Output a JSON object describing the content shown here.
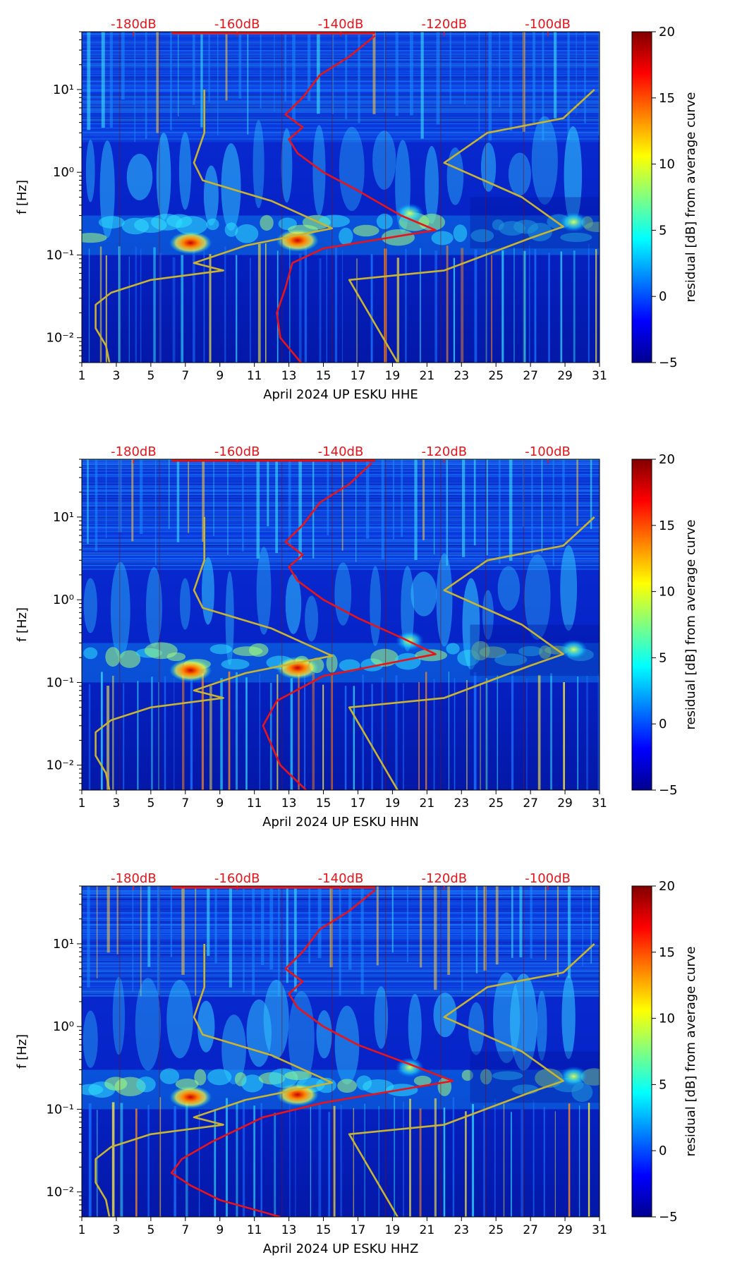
{
  "figure": {
    "colorbar_ticks": [
      "20",
      "15",
      "10",
      "5",
      "0",
      "−5"
    ],
    "colorbar_label": "residual [dB] from average curve",
    "colormap": [
      "#00008f",
      "#0000ff",
      "#0080ff",
      "#00ffff",
      "#80ff80",
      "#ffff00",
      "#ff8000",
      "#ff0000",
      "#800000"
    ],
    "colors": {
      "psd_curve": "#e8141a",
      "noise_model": "#c8b432",
      "db_label": "#e8141a",
      "axis": "#000000"
    }
  },
  "chart_data": [
    {
      "type": "heatmap",
      "title": "",
      "xlabel": "April 2024 UP ESKU  HHE",
      "ylabel": "f [Hz]",
      "xlim": [
        1,
        31
      ],
      "ylim": [
        0.005,
        50
      ],
      "xticks": [
        "1",
        "3",
        "5",
        "7",
        "9",
        "11",
        "13",
        "15",
        "17",
        "19",
        "21",
        "23",
        "25",
        "27",
        "29",
        "31"
      ],
      "yticks": [
        {
          "value": 0.01,
          "label": "10⁻²"
        },
        {
          "value": 0.1,
          "label": "10⁻¹"
        },
        {
          "value": 1,
          "label": "10⁰"
        },
        {
          "value": 10,
          "label": "10¹"
        }
      ],
      "db_axis": [
        {
          "day": 4,
          "label": "-180dB"
        },
        {
          "day": 10,
          "label": "-160dB"
        },
        {
          "day": 16,
          "label": "-140dB"
        },
        {
          "day": 22,
          "label": "-120dB"
        },
        {
          "day": 28,
          "label": "-100dB"
        }
      ],
      "colorbar_range": [
        -5,
        20
      ],
      "series": [
        {
          "name": "PSD (dB)",
          "color": "#e8141a",
          "points": [
            [
              0.005,
              13.7
            ],
            [
              0.01,
              12.5
            ],
            [
              0.02,
              12.3
            ],
            [
              0.04,
              12.8
            ],
            [
              0.08,
              13.2
            ],
            [
              0.12,
              15
            ],
            [
              0.2,
              21.5
            ],
            [
              0.3,
              19.5
            ],
            [
              0.6,
              17
            ],
            [
              1,
              15
            ],
            [
              1.7,
              13.5
            ],
            [
              2.5,
              13
            ],
            [
              3.5,
              13.8
            ],
            [
              5,
              12.8
            ],
            [
              8,
              13.8
            ],
            [
              15,
              14.8
            ],
            [
              25,
              16.5
            ],
            [
              45,
              18
            ]
          ]
        },
        {
          "name": "Noise model (dB)",
          "color": "#c8b432",
          "points": [
            [
              0.005,
              2.6
            ],
            [
              0.008,
              2.4
            ],
            [
              0.013,
              1.8
            ],
            [
              0.025,
              1.8
            ],
            [
              0.035,
              2.7
            ],
            [
              0.05,
              5
            ],
            [
              0.065,
              9.2
            ],
            [
              0.08,
              7.5
            ],
            [
              0.13,
              10.5
            ],
            [
              0.21,
              15.5
            ],
            [
              0.45,
              12
            ],
            [
              0.8,
              8
            ],
            [
              1.3,
              7.5
            ],
            [
              3,
              8.1
            ],
            [
              10,
              8.1
            ]
          ]
        },
        {
          "name": "Noise model (dB)",
          "color": "#c8b432",
          "points": [
            [
              0.005,
              19.3
            ],
            [
              0.05,
              16.5
            ],
            [
              0.065,
              22
            ],
            [
              0.16,
              27
            ],
            [
              0.22,
              28.9
            ],
            [
              0.5,
              26.5
            ],
            [
              1.3,
              22
            ],
            [
              3,
              24.5
            ],
            [
              4.5,
              28.9
            ],
            [
              10,
              30.7
            ]
          ]
        }
      ],
      "highlights": [
        {
          "day": 7.3,
          "f": 0.14,
          "level": "high"
        },
        {
          "day": 13.5,
          "f": 0.15,
          "level": "high"
        },
        {
          "day": 20,
          "f": 0.32,
          "level": "medium"
        },
        {
          "day": 29.5,
          "f": 0.25,
          "level": "medium"
        }
      ]
    },
    {
      "type": "heatmap",
      "title": "",
      "xlabel": "April 2024 UP ESKU  HHN",
      "ylabel": "f [Hz]",
      "xlim": [
        1,
        31
      ],
      "ylim": [
        0.005,
        50
      ],
      "xticks": [
        "1",
        "3",
        "5",
        "7",
        "9",
        "11",
        "13",
        "15",
        "17",
        "19",
        "21",
        "23",
        "25",
        "27",
        "29",
        "31"
      ],
      "yticks": [
        {
          "value": 0.01,
          "label": "10⁻²"
        },
        {
          "value": 0.1,
          "label": "10⁻¹"
        },
        {
          "value": 1,
          "label": "10⁰"
        },
        {
          "value": 10,
          "label": "10¹"
        }
      ],
      "db_axis": [
        {
          "day": 4,
          "label": "-180dB"
        },
        {
          "day": 10,
          "label": "-160dB"
        },
        {
          "day": 16,
          "label": "-140dB"
        },
        {
          "day": 22,
          "label": "-120dB"
        },
        {
          "day": 28,
          "label": "-100dB"
        }
      ],
      "colorbar_range": [
        -5,
        20
      ],
      "series": [
        {
          "name": "PSD (dB)",
          "color": "#e8141a",
          "points": [
            [
              0.005,
              14
            ],
            [
              0.01,
              12.5
            ],
            [
              0.03,
              11.5
            ],
            [
              0.06,
              12.3
            ],
            [
              0.12,
              15
            ],
            [
              0.22,
              21.5
            ],
            [
              0.35,
              19.5
            ],
            [
              0.6,
              17
            ],
            [
              1,
              15
            ],
            [
              1.7,
              13.5
            ],
            [
              2.5,
              13
            ],
            [
              3.5,
              13.8
            ],
            [
              5,
              12.8
            ],
            [
              8,
              13.8
            ],
            [
              15,
              14.8
            ],
            [
              25,
              16.5
            ],
            [
              45,
              17.8
            ]
          ]
        },
        {
          "name": "Noise model (dB)",
          "color": "#c8b432",
          "points": [
            [
              0.005,
              2.6
            ],
            [
              0.008,
              2.4
            ],
            [
              0.013,
              1.8
            ],
            [
              0.025,
              1.8
            ],
            [
              0.035,
              2.7
            ],
            [
              0.05,
              5
            ],
            [
              0.065,
              9.2
            ],
            [
              0.08,
              7.5
            ],
            [
              0.13,
              10.5
            ],
            [
              0.21,
              15.5
            ],
            [
              0.45,
              12
            ],
            [
              0.8,
              8
            ],
            [
              1.3,
              7.5
            ],
            [
              3,
              8.1
            ],
            [
              10,
              8.1
            ]
          ]
        },
        {
          "name": "Noise model (dB)",
          "color": "#c8b432",
          "points": [
            [
              0.005,
              19.3
            ],
            [
              0.05,
              16.5
            ],
            [
              0.065,
              22
            ],
            [
              0.16,
              27
            ],
            [
              0.22,
              28.9
            ],
            [
              0.5,
              26.5
            ],
            [
              1.3,
              22
            ],
            [
              3,
              24.5
            ],
            [
              4.5,
              28.9
            ],
            [
              10,
              30.7
            ]
          ]
        }
      ],
      "highlights": [
        {
          "day": 7.3,
          "f": 0.14,
          "level": "high"
        },
        {
          "day": 13.5,
          "f": 0.15,
          "level": "high"
        },
        {
          "day": 20,
          "f": 0.32,
          "level": "medium"
        },
        {
          "day": 29.5,
          "f": 0.25,
          "level": "medium"
        }
      ]
    },
    {
      "type": "heatmap",
      "title": "",
      "xlabel": "April 2024 UP ESKU  HHZ",
      "ylabel": "f [Hz]",
      "xlim": [
        1,
        31
      ],
      "ylim": [
        0.005,
        50
      ],
      "xticks": [
        "1",
        "3",
        "5",
        "7",
        "9",
        "11",
        "13",
        "15",
        "17",
        "19",
        "21",
        "23",
        "25",
        "27",
        "29",
        "31"
      ],
      "yticks": [
        {
          "value": 0.01,
          "label": "10⁻²"
        },
        {
          "value": 0.1,
          "label": "10⁻¹"
        },
        {
          "value": 1,
          "label": "10⁰"
        },
        {
          "value": 10,
          "label": "10¹"
        }
      ],
      "db_axis": [
        {
          "day": 4,
          "label": "-180dB"
        },
        {
          "day": 10,
          "label": "-160dB"
        },
        {
          "day": 16,
          "label": "-140dB"
        },
        {
          "day": 22,
          "label": "-120dB"
        },
        {
          "day": 28,
          "label": "-100dB"
        }
      ],
      "colorbar_range": [
        -5,
        20
      ],
      "series": [
        {
          "name": "PSD (dB)",
          "color": "#e8141a",
          "points": [
            [
              0.005,
              12.5
            ],
            [
              0.008,
              9
            ],
            [
              0.012,
              7.3
            ],
            [
              0.017,
              6.2
            ],
            [
              0.025,
              6.8
            ],
            [
              0.04,
              8.5
            ],
            [
              0.08,
              11.5
            ],
            [
              0.12,
              15
            ],
            [
              0.22,
              22.5
            ],
            [
              0.35,
              20
            ],
            [
              0.6,
              17
            ],
            [
              1,
              15
            ],
            [
              1.7,
              13.5
            ],
            [
              2.5,
              13
            ],
            [
              3.5,
              13.8
            ],
            [
              5,
              12.8
            ],
            [
              8,
              13.8
            ],
            [
              15,
              14.8
            ],
            [
              25,
              16.5
            ],
            [
              45,
              18
            ]
          ]
        },
        {
          "name": "Noise model (dB)",
          "color": "#c8b432",
          "points": [
            [
              0.005,
              2.6
            ],
            [
              0.008,
              2.4
            ],
            [
              0.013,
              1.8
            ],
            [
              0.025,
              1.8
            ],
            [
              0.035,
              2.7
            ],
            [
              0.05,
              5
            ],
            [
              0.065,
              9.2
            ],
            [
              0.08,
              7.5
            ],
            [
              0.13,
              10.5
            ],
            [
              0.21,
              15.5
            ],
            [
              0.45,
              12
            ],
            [
              0.8,
              8
            ],
            [
              1.3,
              7.5
            ],
            [
              3,
              8.1
            ],
            [
              10,
              8.1
            ]
          ]
        },
        {
          "name": "Noise model (dB)",
          "color": "#c8b432",
          "points": [
            [
              0.005,
              19.3
            ],
            [
              0.05,
              16.5
            ],
            [
              0.065,
              22
            ],
            [
              0.16,
              27
            ],
            [
              0.22,
              28.9
            ],
            [
              0.5,
              26.5
            ],
            [
              1.3,
              22
            ],
            [
              3,
              24.5
            ],
            [
              4.5,
              28.9
            ],
            [
              10,
              30.7
            ]
          ]
        }
      ],
      "highlights": [
        {
          "day": 7.3,
          "f": 0.14,
          "level": "high"
        },
        {
          "day": 13.5,
          "f": 0.15,
          "level": "high"
        },
        {
          "day": 20,
          "f": 0.32,
          "level": "medium"
        },
        {
          "day": 29.5,
          "f": 0.25,
          "level": "medium"
        }
      ]
    }
  ]
}
